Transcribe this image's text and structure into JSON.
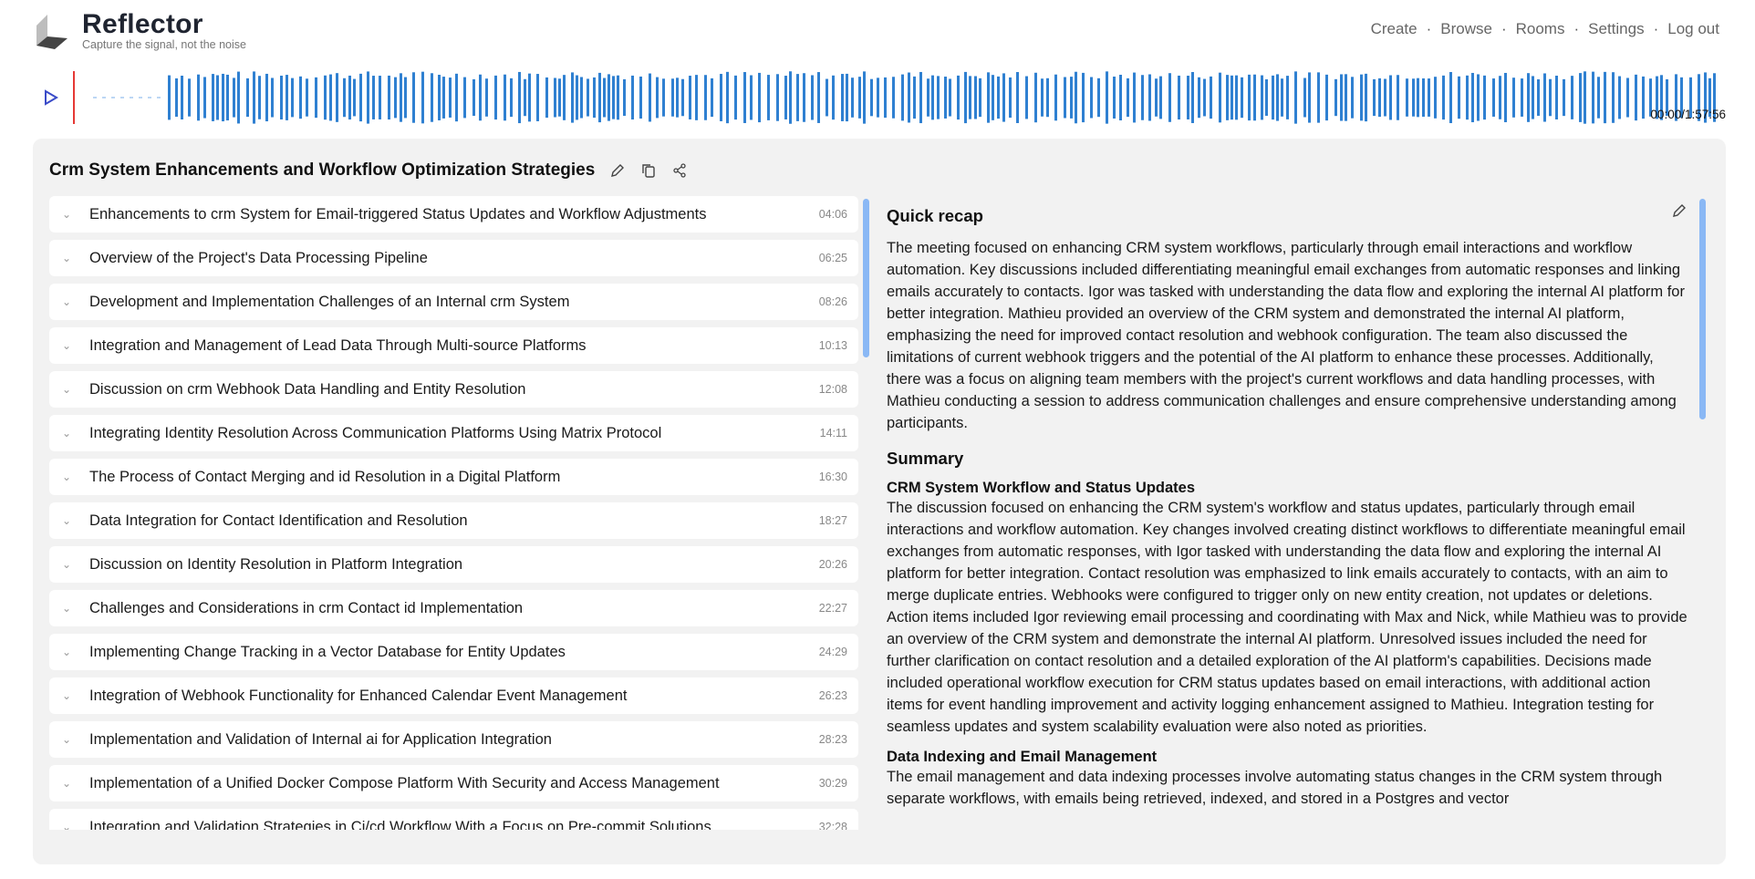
{
  "header": {
    "title": "Reflector",
    "tagline": "Capture the signal, not the noise",
    "nav": [
      {
        "label": "Create"
      },
      {
        "label": "Browse"
      },
      {
        "label": "Rooms"
      },
      {
        "label": "Settings"
      },
      {
        "label": "Log out"
      }
    ],
    "separator": "·"
  },
  "player": {
    "time": "00:00/1:57:56",
    "progress": 0,
    "wave_color": "#2f80d1",
    "playhead_color": "#e53935"
  },
  "transcript": {
    "title": "Crm System Enhancements and Workflow Optimization Strategies",
    "topics": [
      {
        "title": "Enhancements to crm System for Email-triggered Status Updates and Workflow Adjustments",
        "time": "04:06"
      },
      {
        "title": "Overview of the Project's Data Processing Pipeline",
        "time": "06:25"
      },
      {
        "title": "Development and Implementation Challenges of an Internal crm System",
        "time": "08:26"
      },
      {
        "title": "Integration and Management of Lead Data Through Multi-source Platforms",
        "time": "10:13"
      },
      {
        "title": "Discussion on crm Webhook Data Handling and Entity Resolution",
        "time": "12:08"
      },
      {
        "title": "Integrating Identity Resolution Across Communication Platforms Using Matrix Protocol",
        "time": "14:11"
      },
      {
        "title": "The Process of Contact Merging and id Resolution in a Digital Platform",
        "time": "16:30"
      },
      {
        "title": "Data Integration for Contact Identification and Resolution",
        "time": "18:27"
      },
      {
        "title": "Discussion on Identity Resolution in Platform Integration",
        "time": "20:26"
      },
      {
        "title": "Challenges and Considerations in crm Contact id Implementation",
        "time": "22:27"
      },
      {
        "title": "Implementing Change Tracking in a Vector Database for Entity Updates",
        "time": "24:29"
      },
      {
        "title": "Integration of Webhook Functionality for Enhanced Calendar Event Management",
        "time": "26:23"
      },
      {
        "title": "Implementation and Validation of Internal ai for Application Integration",
        "time": "28:23"
      },
      {
        "title": "Implementation of a Unified Docker Compose Platform With Security and Access Management",
        "time": "30:29"
      },
      {
        "title": "Integration and Validation Strategies in Ci/cd Workflow With a Focus on Pre-commit Solutions",
        "time": "32:28"
      }
    ]
  },
  "recap": {
    "heading": "Quick recap",
    "text": "The meeting focused on enhancing CRM system workflows, particularly through email interactions and workflow automation. Key discussions included differentiating meaningful email exchanges from automatic responses and linking emails accurately to contacts. Igor was tasked with understanding the data flow and exploring the internal AI platform for better integration. Mathieu provided an overview of the CRM system and demonstrated the internal AI platform, emphasizing the need for improved contact resolution and webhook configuration. The team also discussed the limitations of current webhook triggers and the potential of the AI platform to enhance these processes. Additionally, there was a focus on aligning team members with the project's current workflows and data handling processes, with Mathieu conducting a session to address communication challenges and ensure comprehensive understanding among participants.",
    "summary_heading": "Summary",
    "sections": [
      {
        "heading": "CRM System Workflow and Status Updates",
        "text": "The discussion focused on enhancing the CRM system's workflow and status updates, particularly through email interactions and workflow automation. Key changes involved creating distinct workflows to differentiate meaningful email exchanges from automatic responses, with Igor tasked with understanding the data flow and exploring the internal AI platform for better integration. Contact resolution was emphasized to link emails accurately to contacts, with an aim to merge duplicate entries. Webhooks were configured to trigger only on new entity creation, not updates or deletions. Action items included Igor reviewing email processing and coordinating with Max and Nick, while Mathieu was to provide an overview of the CRM system and demonstrate the internal AI platform. Unresolved issues included the need for further clarification on contact resolution and a detailed exploration of the AI platform's capabilities. Decisions made included operational workflow execution for CRM status updates based on email interactions, with additional action items for event handling improvement and activity logging enhancement assigned to Mathieu. Integration testing for seamless updates and system scalability evaluation were also noted as priorities."
      },
      {
        "heading": "Data Indexing and Email Management",
        "text": "The email management and data indexing processes involve automating status changes in the CRM system through separate workflows, with emails being retrieved, indexed, and stored in a Postgres and vector"
      }
    ]
  }
}
